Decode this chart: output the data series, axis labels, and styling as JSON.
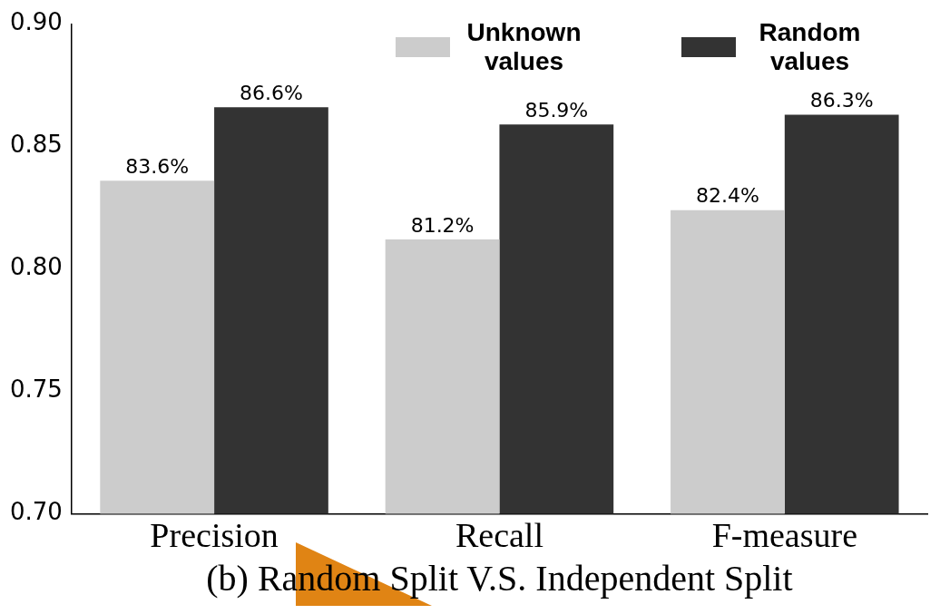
{
  "chart_data": {
    "type": "bar",
    "xlabel": "(b) Random Split V.S. Independent Split",
    "categories": [
      "Precision",
      "Recall",
      "F-measure"
    ],
    "series": [
      {
        "name": "Unknown values",
        "color": "#cccccc",
        "values": [
          0.836,
          0.812,
          0.824
        ],
        "value_labels": [
          "83.6%",
          "81.2%",
          "82.4%"
        ]
      },
      {
        "name": "Random values",
        "color": "#333333",
        "values": [
          0.866,
          0.859,
          0.863
        ],
        "value_labels": [
          "86.6%",
          "85.9%",
          "86.3%"
        ]
      }
    ],
    "ylim": [
      0.7,
      0.9
    ],
    "yticks": [
      {
        "value": 0.7,
        "label": "0.70"
      },
      {
        "value": 0.75,
        "label": "0.75"
      },
      {
        "value": 0.8,
        "label": "0.80"
      },
      {
        "value": 0.85,
        "label": "0.85"
      },
      {
        "value": 0.9,
        "label": "0.90"
      }
    ],
    "grid": false,
    "legend": "top"
  }
}
